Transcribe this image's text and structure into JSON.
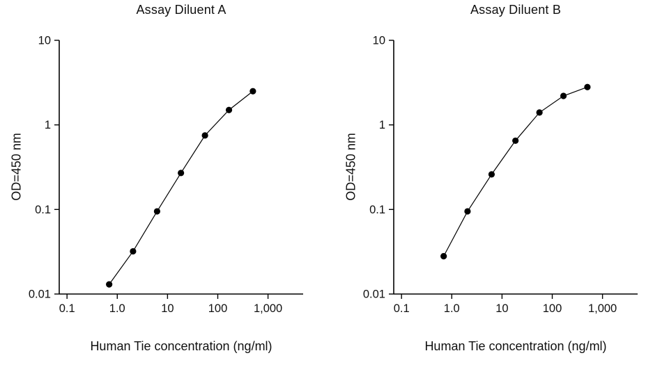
{
  "chart_data": [
    {
      "type": "line",
      "title": "Assay Diluent A",
      "xlabel": "Human Tie concentration (ng/ml)",
      "ylabel": "OD=450 nm",
      "xscale": "log",
      "yscale": "log",
      "xlim": [
        0.07,
        5000
      ],
      "ylim": [
        0.01,
        10
      ],
      "x": [
        0.69,
        2.06,
        6.2,
        18.5,
        55.6,
        167,
        500
      ],
      "y": [
        0.013,
        0.032,
        0.095,
        0.27,
        0.75,
        1.5,
        2.5
      ],
      "xticks": [
        {
          "v": 0.1,
          "label": "0.1"
        },
        {
          "v": 1,
          "label": "1.0"
        },
        {
          "v": 10,
          "label": "10"
        },
        {
          "v": 100,
          "label": "100"
        },
        {
          "v": 1000,
          "label": "1,000"
        }
      ],
      "yticks": [
        {
          "v": 0.01,
          "label": "0.01"
        },
        {
          "v": 0.1,
          "label": "0.1"
        },
        {
          "v": 1,
          "label": "1"
        },
        {
          "v": 10,
          "label": "10"
        }
      ],
      "grid": false,
      "legend": "none",
      "marker_color": "#000000",
      "line_color": "#000000"
    },
    {
      "type": "line",
      "title": "Assay Diluent B",
      "xlabel": "Human Tie concentration (ng/ml)",
      "ylabel": "OD=450 nm",
      "xscale": "log",
      "yscale": "log",
      "xlim": [
        0.07,
        5000
      ],
      "ylim": [
        0.01,
        10
      ],
      "x": [
        0.69,
        2.06,
        6.2,
        18.5,
        55.6,
        167,
        500
      ],
      "y": [
        0.028,
        0.095,
        0.26,
        0.65,
        1.4,
        2.2,
        2.8
      ],
      "xticks": [
        {
          "v": 0.1,
          "label": "0.1"
        },
        {
          "v": 1,
          "label": "1.0"
        },
        {
          "v": 10,
          "label": "10"
        },
        {
          "v": 100,
          "label": "100"
        },
        {
          "v": 1000,
          "label": "1,000"
        }
      ],
      "yticks": [
        {
          "v": 0.01,
          "label": "0.01"
        },
        {
          "v": 0.1,
          "label": "0.1"
        },
        {
          "v": 1,
          "label": "1"
        },
        {
          "v": 10,
          "label": "10"
        }
      ],
      "grid": false,
      "legend": "none",
      "marker_color": "#000000",
      "line_color": "#000000"
    }
  ]
}
